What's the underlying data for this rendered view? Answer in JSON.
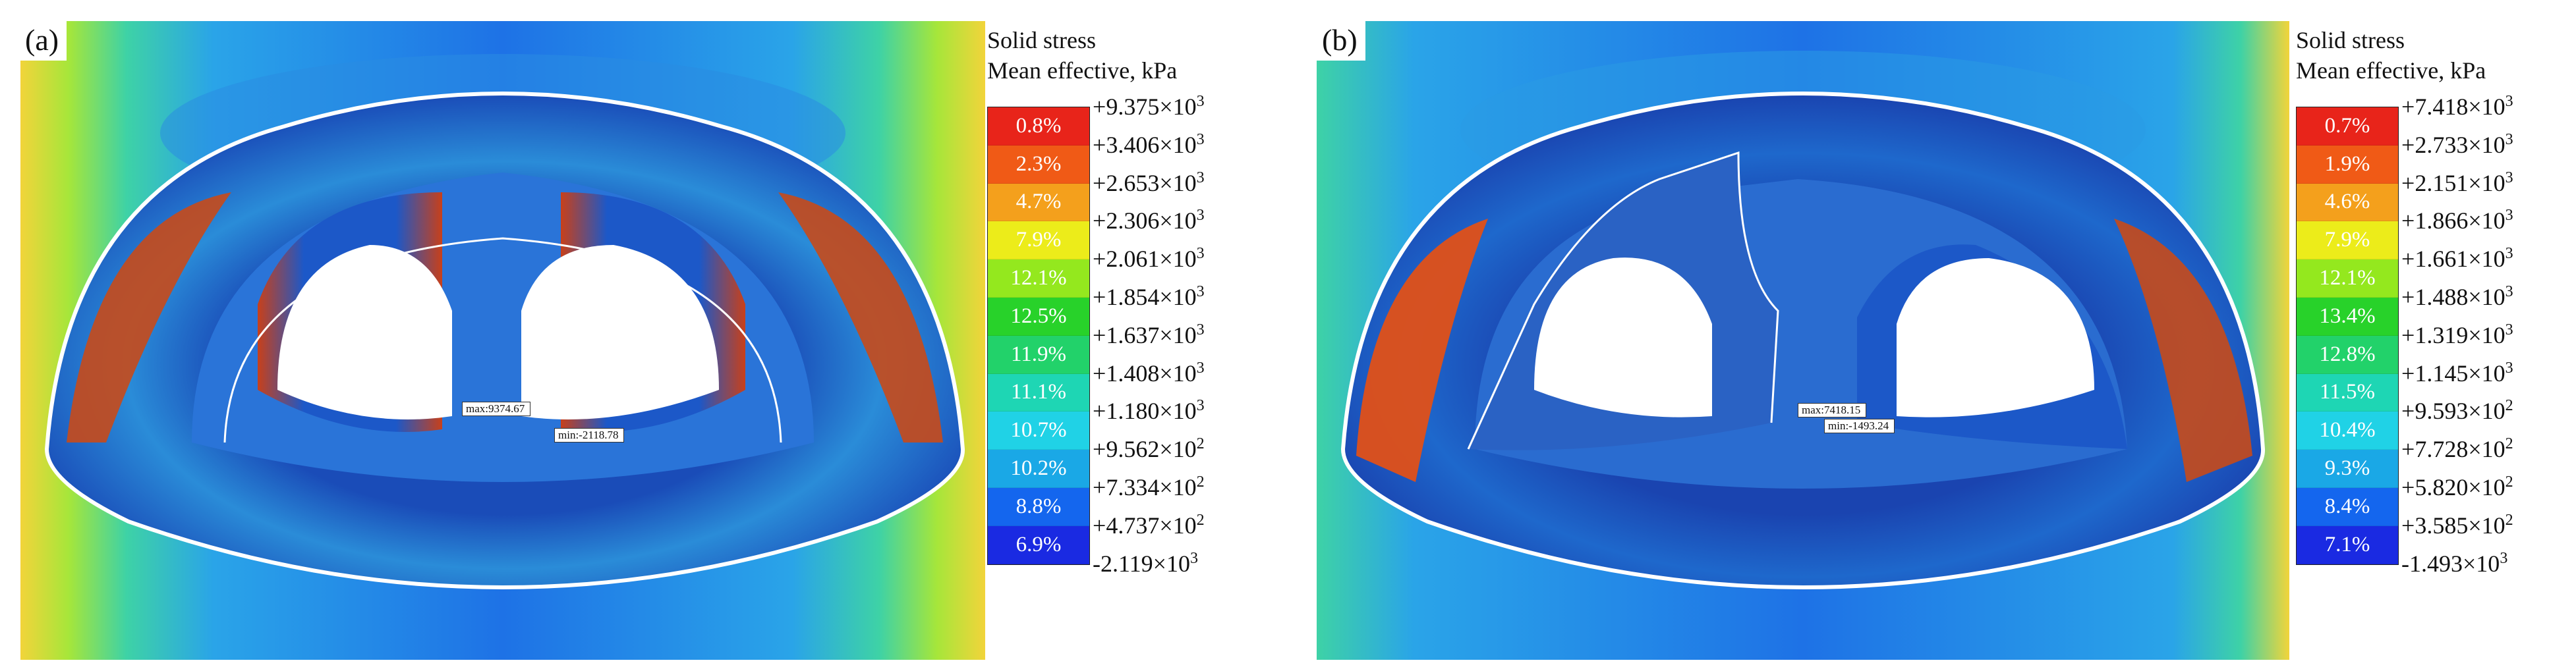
{
  "panels": [
    {
      "label": "(a)",
      "legend": {
        "title_line1": "Solid stress",
        "title_line2": "Mean effective, kPa",
        "percents": [
          "0.8%",
          "2.3%",
          "4.7%",
          "7.9%",
          "12.1%",
          "12.5%",
          "11.9%",
          "11.1%",
          "10.7%",
          "10.2%",
          "8.8%",
          "6.9%"
        ],
        "ticks": [
          {
            "sign": "+",
            "mant": "9.375",
            "exp": "3"
          },
          {
            "sign": "+",
            "mant": "3.406",
            "exp": "3"
          },
          {
            "sign": "+",
            "mant": "2.653",
            "exp": "3"
          },
          {
            "sign": "+",
            "mant": "2.306",
            "exp": "3"
          },
          {
            "sign": "+",
            "mant": "2.061",
            "exp": "3"
          },
          {
            "sign": "+",
            "mant": "1.854",
            "exp": "3"
          },
          {
            "sign": "+",
            "mant": "1.637",
            "exp": "3"
          },
          {
            "sign": "+",
            "mant": "1.408",
            "exp": "3"
          },
          {
            "sign": "+",
            "mant": "1.180",
            "exp": "3"
          },
          {
            "sign": "+",
            "mant": "9.562",
            "exp": "2"
          },
          {
            "sign": "+",
            "mant": "7.334",
            "exp": "2"
          },
          {
            "sign": "+",
            "mant": "4.737",
            "exp": "2"
          },
          {
            "sign": "-",
            "mant": "2.119",
            "exp": "3"
          }
        ]
      },
      "max_label": "max:9374.67",
      "min_label": "min:-2118.78"
    },
    {
      "label": "(b)",
      "legend": {
        "title_line1": "Solid stress",
        "title_line2": "Mean effective, kPa",
        "percents": [
          "0.7%",
          "1.9%",
          "4.6%",
          "7.9%",
          "12.1%",
          "13.4%",
          "12.8%",
          "11.5%",
          "10.4%",
          "9.3%",
          "8.4%",
          "7.1%"
        ],
        "ticks": [
          {
            "sign": "+",
            "mant": "7.418",
            "exp": "3"
          },
          {
            "sign": "+",
            "mant": "2.733",
            "exp": "3"
          },
          {
            "sign": "+",
            "mant": "2.151",
            "exp": "3"
          },
          {
            "sign": "+",
            "mant": "1.866",
            "exp": "3"
          },
          {
            "sign": "+",
            "mant": "1.661",
            "exp": "3"
          },
          {
            "sign": "+",
            "mant": "1.488",
            "exp": "3"
          },
          {
            "sign": "+",
            "mant": "1.319",
            "exp": "3"
          },
          {
            "sign": "+",
            "mant": "1.145",
            "exp": "3"
          },
          {
            "sign": "+",
            "mant": "9.593",
            "exp": "2"
          },
          {
            "sign": "+",
            "mant": "7.728",
            "exp": "2"
          },
          {
            "sign": "+",
            "mant": "5.820",
            "exp": "2"
          },
          {
            "sign": "+",
            "mant": "3.585",
            "exp": "2"
          },
          {
            "sign": "-",
            "mant": "1.493",
            "exp": "3"
          }
        ]
      },
      "max_label": "max:7418.15",
      "min_label": "min:-1493.24"
    }
  ],
  "colors": {
    "bands": [
      "#e8241a",
      "#f05a16",
      "#f4a01c",
      "#ecec1a",
      "#94e81e",
      "#28d22a",
      "#22d26a",
      "#1ed6b4",
      "#20d2e6",
      "#1aa8e6",
      "#1466ee",
      "#1a2ae2"
    ],
    "background_blue": "#1e6ee6",
    "field_green": "#3cc8a0",
    "field_yellow": "#f0e43a",
    "band_dark_blue": "#123c9a",
    "stress_red": "#d23a14",
    "outline": "#ffffff"
  }
}
